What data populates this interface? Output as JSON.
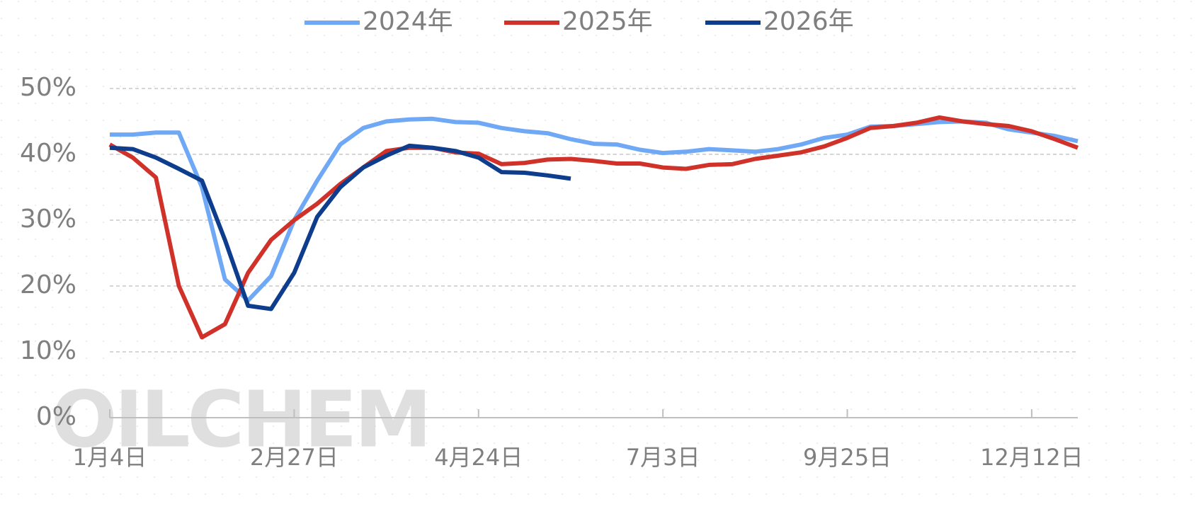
{
  "chart_data": {
    "type": "line",
    "watermark": "OILCHEM",
    "categories": [
      "1月4日",
      null,
      null,
      null,
      null,
      null,
      null,
      null,
      "2月27日",
      null,
      null,
      null,
      null,
      null,
      null,
      null,
      "4月24日",
      null,
      null,
      null,
      null,
      null,
      null,
      null,
      "7月3日",
      null,
      null,
      null,
      null,
      null,
      null,
      null,
      "9月25日",
      null,
      null,
      null,
      null,
      null,
      null,
      null,
      "12月12日",
      null,
      null
    ],
    "series": [
      {
        "name": "2024年",
        "color": "#6fa8f5",
        "values": [
          43,
          43,
          43.3,
          43.3,
          35,
          21,
          17.8,
          21.5,
          30,
          36,
          41.5,
          44,
          45,
          45.3,
          45.4,
          44.9,
          44.8,
          44,
          43.5,
          43.2,
          42.3,
          41.6,
          41.5,
          40.7,
          40.2,
          40.4,
          40.8,
          40.6,
          40.4,
          40.8,
          41.5,
          42.5,
          43,
          44.2,
          44.3,
          44.6,
          44.9,
          45,
          44.8,
          43.8,
          43.3,
          42.8,
          42
        ]
      },
      {
        "name": "2025年",
        "color": "#d0322a",
        "values": [
          41.5,
          39.5,
          36.5,
          20,
          12.2,
          14.2,
          22,
          27,
          30,
          32.5,
          35.5,
          38,
          40.5,
          41,
          41,
          40.3,
          40.1,
          38.5,
          38.7,
          39.2,
          39.3,
          39,
          38.6,
          38.6,
          38,
          37.8,
          38.4,
          38.5,
          39.3,
          39.8,
          40.3,
          41.2,
          42.5,
          44,
          44.3,
          44.8,
          45.6,
          45,
          44.6,
          44.3,
          43.5,
          42.3,
          41
        ]
      },
      {
        "name": "2026年",
        "color": "#0d3d8c",
        "values": [
          41,
          40.8,
          39.5,
          37.8,
          36,
          27,
          17,
          16.5,
          22,
          30.5,
          35,
          38,
          39.8,
          41.3,
          41,
          40.5,
          39.5,
          37.3,
          37.2,
          36.8,
          36.3,
          null,
          null,
          null,
          null,
          null,
          null,
          null,
          null,
          null,
          null,
          null,
          null,
          null,
          null,
          null,
          null,
          null,
          null,
          null,
          null,
          null,
          null
        ]
      }
    ],
    "ylim": [
      0,
      50
    ],
    "yticks": [
      {
        "value": 0,
        "label": "0%"
      },
      {
        "value": 10,
        "label": "10%"
      },
      {
        "value": 20,
        "label": "20%"
      },
      {
        "value": 30,
        "label": "30%"
      },
      {
        "value": 40,
        "label": "40%"
      },
      {
        "value": 50,
        "label": "50%"
      }
    ],
    "grid": true,
    "legend": "top"
  }
}
